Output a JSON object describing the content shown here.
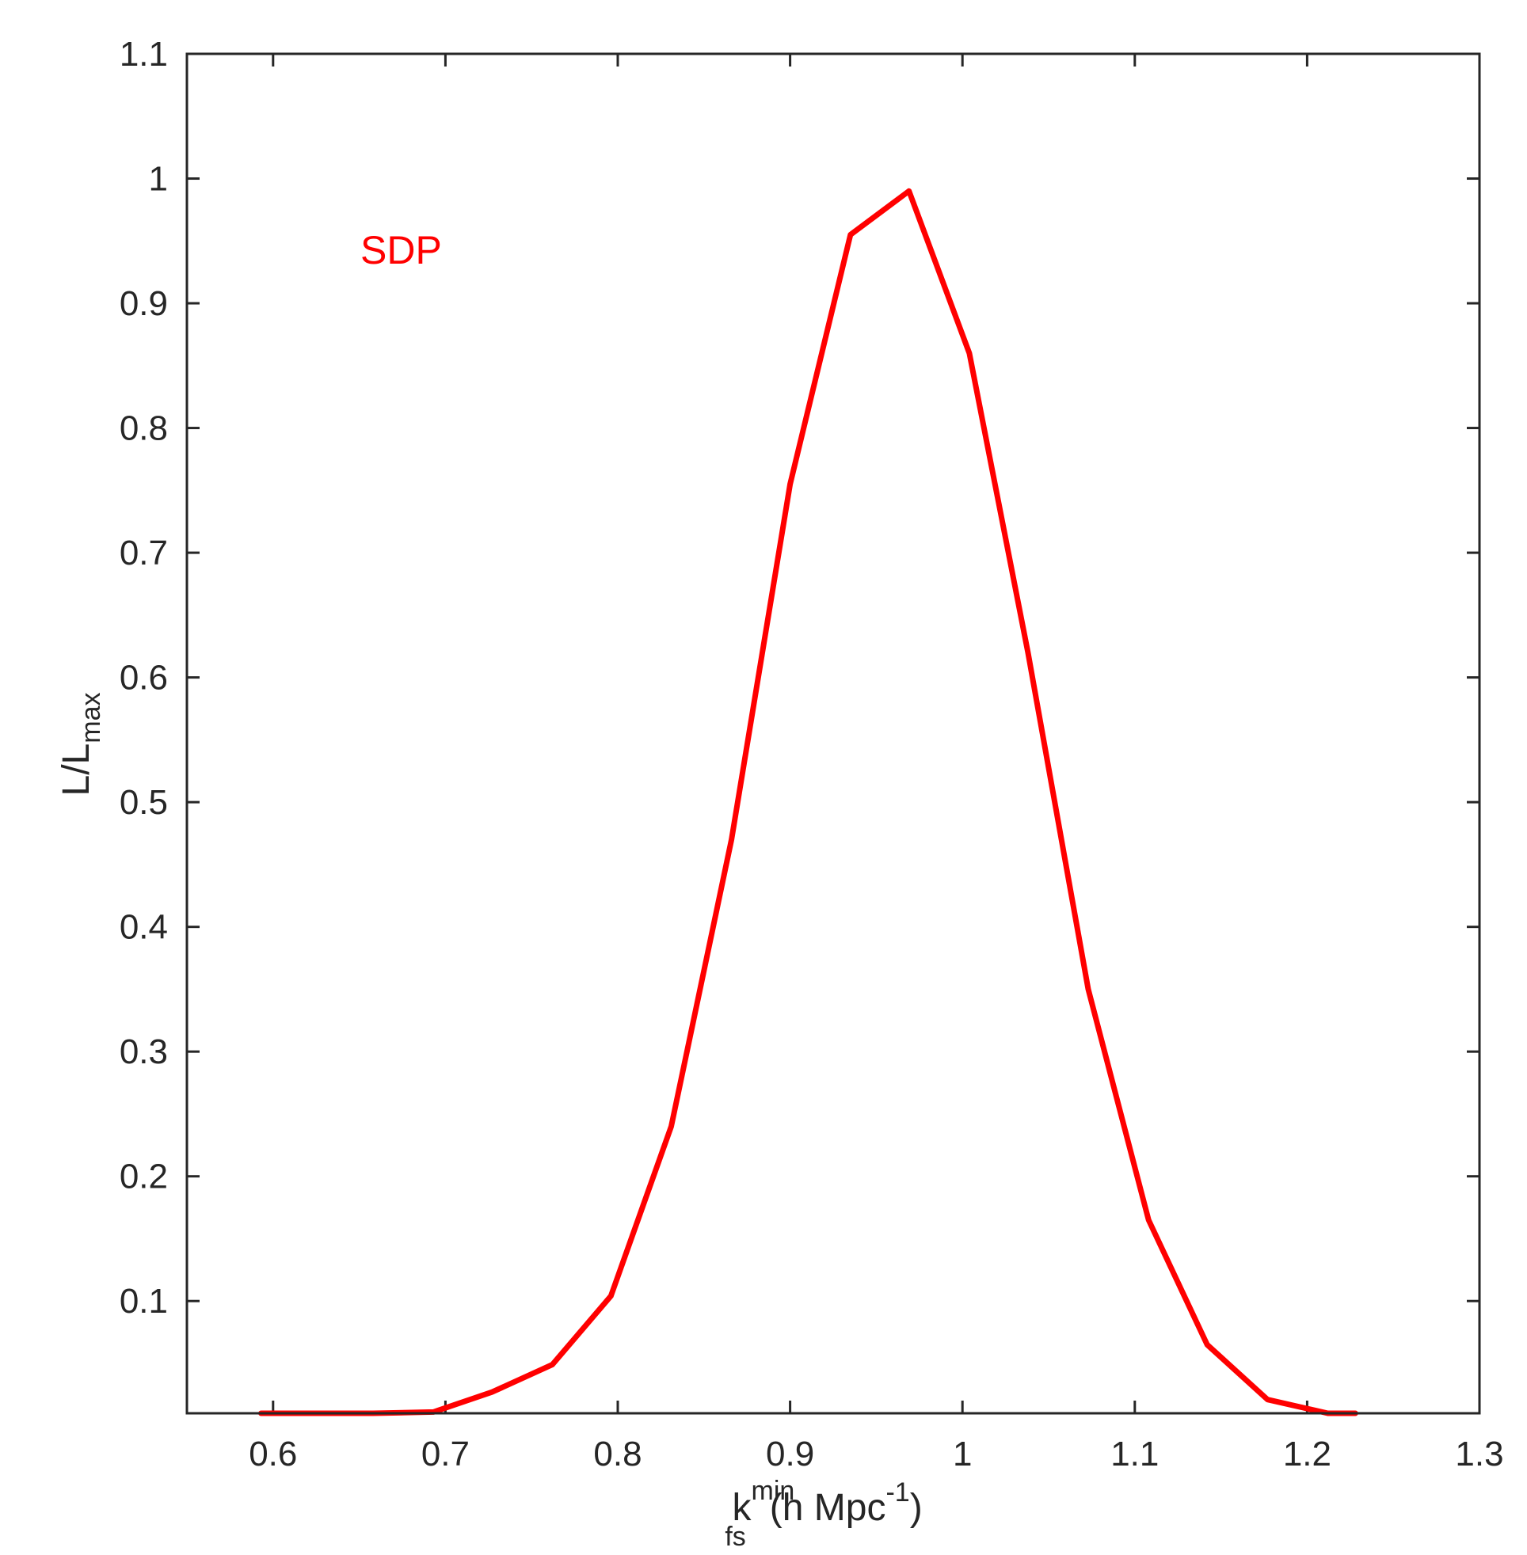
{
  "chart_data": {
    "type": "line",
    "series": [
      {
        "color": "#ff0000",
        "x": [
          0.593,
          0.623,
          0.658,
          0.693,
          0.727,
          0.762,
          0.796,
          0.831,
          0.866,
          0.9,
          0.935,
          0.969,
          1.004,
          1.038,
          1.073,
          1.108,
          1.142,
          1.177,
          1.212,
          1.228
        ],
        "y": [
          0.0,
          0.001,
          0.003,
          0.011,
          0.027,
          0.049,
          0.104,
          0.24,
          0.47,
          0.755,
          0.955,
          0.99,
          0.86,
          0.62,
          0.35,
          0.165,
          0.065,
          0.021,
          0.004,
          0.0
        ]
      }
    ],
    "xlim": [
      0.55,
      1.3
    ],
    "ylim": [
      0.01,
      1.1
    ],
    "xticks": [
      0.6,
      0.7,
      0.8,
      0.9,
      1.0,
      1.1,
      1.2,
      1.3
    ],
    "yticks": [
      0.1,
      0.2,
      0.3,
      0.4,
      0.5,
      0.6,
      0.7,
      0.8,
      0.9,
      1.0,
      1.1
    ],
    "xtick_labels": [
      "0.6",
      "0.7",
      "0.8",
      "0.9",
      "1",
      "1.1",
      "1.2",
      "1.3"
    ],
    "ytick_labels": [
      "0.1",
      "0.2",
      "0.3",
      "0.4",
      "0.5",
      "0.6",
      "0.7",
      "0.8",
      "0.9",
      "1",
      "1.1"
    ],
    "xlabel": {
      "base": "k",
      "sup": "min",
      "sub": "fs",
      "unit_open": "(h Mpc",
      "unit_sup": "-1",
      "unit_close": ")"
    },
    "ylabel": {
      "base": "L/L",
      "sub": "max"
    },
    "annotation": {
      "text": "SDP",
      "color": "#ff0000"
    },
    "grid": false,
    "box": true
  }
}
